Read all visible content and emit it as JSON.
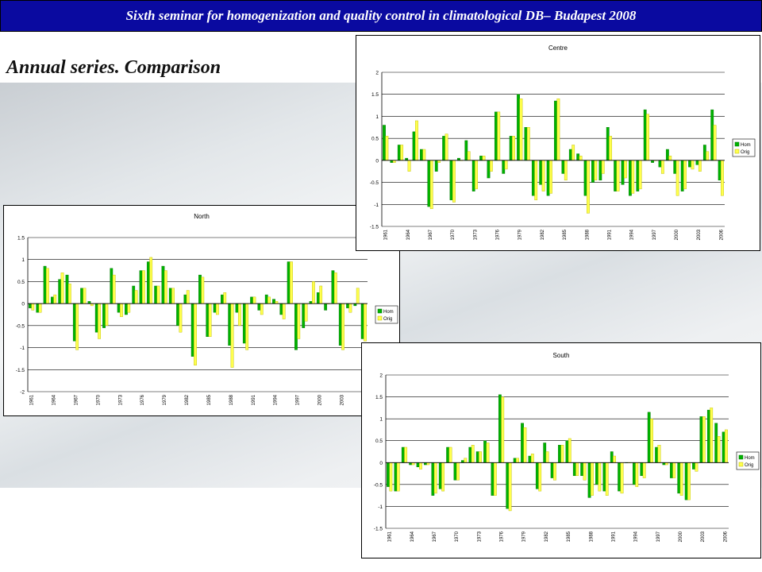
{
  "banner": {
    "text": "Sixth seminar for homogenization and quality control  in climatological DB– Budapest 2008"
  },
  "slide": {
    "title": "Annual series. Comparison"
  },
  "colors": {
    "hom": "#00b200",
    "orig": "#ffff4d",
    "banner_bg": "#0a0aa0",
    "gridline": "#000000"
  },
  "chart_data": [
    {
      "id": "centre",
      "type": "bar",
      "title": "Centre",
      "ylim": [
        -1.5,
        2
      ],
      "yticks": [
        -1.5,
        -1,
        -0.5,
        0,
        0.5,
        1,
        1.5,
        2
      ],
      "xlabels": [
        "1961",
        "1964",
        "1967",
        "1970",
        "1973",
        "1976",
        "1979",
        "1982",
        "1985",
        "1988",
        "1991",
        "1994",
        "1997",
        "2000",
        "2003",
        "2006"
      ],
      "grid": true,
      "legend_position": "right",
      "categories": [
        "1961",
        "1962",
        "1963",
        "1964",
        "1965",
        "1966",
        "1967",
        "1968",
        "1969",
        "1970",
        "1971",
        "1972",
        "1973",
        "1974",
        "1975",
        "1976",
        "1977",
        "1978",
        "1979",
        "1980",
        "1981",
        "1982",
        "1983",
        "1984",
        "1985",
        "1986",
        "1987",
        "1988",
        "1989",
        "1990",
        "1991",
        "1992",
        "1993",
        "1994",
        "1995",
        "1996",
        "1997",
        "1998",
        "1999",
        "2000",
        "2001",
        "2002",
        "2003",
        "2004",
        "2005",
        "2006"
      ],
      "series": [
        {
          "name": "Hom",
          "values": [
            0.8,
            -0.05,
            0.35,
            0.05,
            0.65,
            0.25,
            -1.05,
            -0.25,
            0.55,
            -0.9,
            0.05,
            0.45,
            -0.7,
            0.1,
            -0.4,
            1.1,
            -0.3,
            0.55,
            1.5,
            0.75,
            -0.8,
            -0.55,
            -0.8,
            1.35,
            -0.3,
            0.25,
            0.15,
            -0.8,
            -0.5,
            -0.45,
            0.75,
            -0.7,
            -0.55,
            -0.8,
            -0.7,
            1.15,
            -0.05,
            -0.15,
            0.25,
            -0.3,
            -0.7,
            -0.15,
            -0.1,
            0.35,
            1.15,
            -0.45
          ]
        },
        {
          "name": "Orig",
          "values": [
            0.55,
            -0.05,
            0.35,
            -0.25,
            0.9,
            0.25,
            -1.1,
            -0.05,
            0.6,
            -0.95,
            0.0,
            0.2,
            -0.65,
            0.1,
            -0.25,
            1.1,
            -0.2,
            0.55,
            1.4,
            0.75,
            -0.9,
            -0.7,
            -0.75,
            1.4,
            -0.45,
            0.35,
            0.1,
            -1.2,
            -0.45,
            -0.3,
            0.55,
            -0.7,
            -0.4,
            -0.75,
            -0.65,
            1.05,
            0.0,
            -0.3,
            0.1,
            -0.8,
            -0.65,
            -0.2,
            -0.25,
            0.2,
            0.8,
            -0.8
          ]
        }
      ]
    },
    {
      "id": "north",
      "type": "bar",
      "title": "North",
      "ylim": [
        -2,
        1.5
      ],
      "yticks": [
        -2,
        -1.5,
        -1,
        -0.5,
        0,
        0.5,
        1,
        1.5
      ],
      "xlabels": [
        "1961",
        "1964",
        "1967",
        "1970",
        "1973",
        "1976",
        "1979",
        "1982",
        "1985",
        "1988",
        "1991",
        "1994",
        "1997",
        "2000",
        "2003"
      ],
      "grid": true,
      "legend_position": "right",
      "categories": [
        "1961",
        "1962",
        "1963",
        "1964",
        "1965",
        "1966",
        "1967",
        "1968",
        "1969",
        "1970",
        "1971",
        "1972",
        "1973",
        "1974",
        "1975",
        "1976",
        "1977",
        "1978",
        "1979",
        "1980",
        "1981",
        "1982",
        "1983",
        "1984",
        "1985",
        "1986",
        "1987",
        "1988",
        "1989",
        "1990",
        "1991",
        "1992",
        "1993",
        "1994",
        "1995",
        "1996",
        "1997",
        "1998",
        "1999",
        "2000",
        "2001",
        "2002",
        "2003",
        "2004",
        "2005",
        "2006"
      ],
      "series": [
        {
          "name": "Hom",
          "values": [
            -0.1,
            -0.2,
            0.85,
            0.15,
            0.55,
            0.65,
            -0.85,
            0.35,
            0.05,
            -0.65,
            -0.55,
            0.8,
            -0.2,
            -0.25,
            0.4,
            0.75,
            0.95,
            0.4,
            0.85,
            0.35,
            -0.5,
            0.2,
            -1.2,
            0.65,
            -0.75,
            -0.2,
            0.2,
            -0.95,
            -0.2,
            -0.9,
            0.15,
            -0.15,
            0.2,
            0.1,
            -0.25,
            0.95,
            -1.05,
            -0.55,
            0.05,
            0.25,
            -0.15,
            0.75,
            -0.95,
            -0.1,
            -0.05,
            -0.8
          ]
        },
        {
          "name": "Orig",
          "values": [
            -0.15,
            -0.2,
            0.8,
            0.2,
            0.7,
            0.45,
            -1.05,
            0.35,
            -0.05,
            -0.8,
            -0.5,
            0.65,
            -0.3,
            -0.2,
            0.3,
            0.75,
            1.05,
            0.4,
            0.75,
            0.35,
            -0.65,
            0.3,
            -1.4,
            0.6,
            -0.75,
            -0.25,
            0.25,
            -1.45,
            -0.5,
            -1.05,
            0.15,
            -0.25,
            0.15,
            0.05,
            -0.35,
            0.95,
            -0.8,
            -0.4,
            0.5,
            0.4,
            0.0,
            0.7,
            -1.05,
            -0.2,
            0.35,
            -0.85
          ]
        }
      ]
    },
    {
      "id": "south",
      "type": "bar",
      "title": "South",
      "ylim": [
        -1.5,
        2
      ],
      "yticks": [
        -1.5,
        -1,
        -0.5,
        0,
        0.5,
        1,
        1.5,
        2
      ],
      "xlabels": [
        "1961",
        "1964",
        "1967",
        "1970",
        "1973",
        "1976",
        "1979",
        "1982",
        "1985",
        "1988",
        "1991",
        "1994",
        "1997",
        "2000",
        "2003",
        "2006"
      ],
      "grid": true,
      "legend_position": "right",
      "categories": [
        "1961",
        "1962",
        "1963",
        "1964",
        "1965",
        "1966",
        "1967",
        "1968",
        "1969",
        "1970",
        "1971",
        "1972",
        "1973",
        "1974",
        "1975",
        "1976",
        "1977",
        "1978",
        "1979",
        "1980",
        "1981",
        "1982",
        "1983",
        "1984",
        "1985",
        "1986",
        "1987",
        "1988",
        "1989",
        "1990",
        "1991",
        "1992",
        "1993",
        "1994",
        "1995",
        "1996",
        "1997",
        "1998",
        "1999",
        "2000",
        "2001",
        "2002",
        "2003",
        "2004",
        "2005",
        "2006"
      ],
      "series": [
        {
          "name": "Hom",
          "values": [
            -0.55,
            -0.65,
            0.35,
            -0.05,
            -0.1,
            -0.05,
            -0.75,
            -0.6,
            0.35,
            -0.4,
            0.05,
            0.35,
            0.25,
            0.5,
            -0.75,
            1.55,
            -1.05,
            0.1,
            0.9,
            0.15,
            -0.6,
            0.45,
            -0.35,
            0.4,
            0.5,
            -0.3,
            -0.3,
            -0.8,
            -0.5,
            -0.65,
            0.25,
            -0.65,
            0.0,
            -0.5,
            -0.3,
            1.15,
            0.35,
            -0.05,
            -0.35,
            -0.7,
            -0.85,
            -0.15,
            1.05,
            1.2,
            0.9,
            0.7
          ]
        },
        {
          "name": "Orig",
          "values": [
            -0.65,
            -0.65,
            0.35,
            -0.05,
            -0.15,
            -0.05,
            -0.7,
            -0.65,
            0.35,
            -0.4,
            0.1,
            0.4,
            0.25,
            0.45,
            -0.75,
            1.5,
            -1.1,
            0.1,
            0.8,
            0.2,
            -0.65,
            0.25,
            -0.4,
            0.4,
            0.55,
            -0.3,
            -0.4,
            -0.75,
            -0.65,
            -0.75,
            0.15,
            -0.7,
            0.0,
            -0.55,
            -0.35,
            1.0,
            0.4,
            -0.05,
            -0.35,
            -0.75,
            -0.85,
            -0.2,
            1.05,
            1.25,
            0.6,
            0.75
          ]
        }
      ]
    }
  ]
}
